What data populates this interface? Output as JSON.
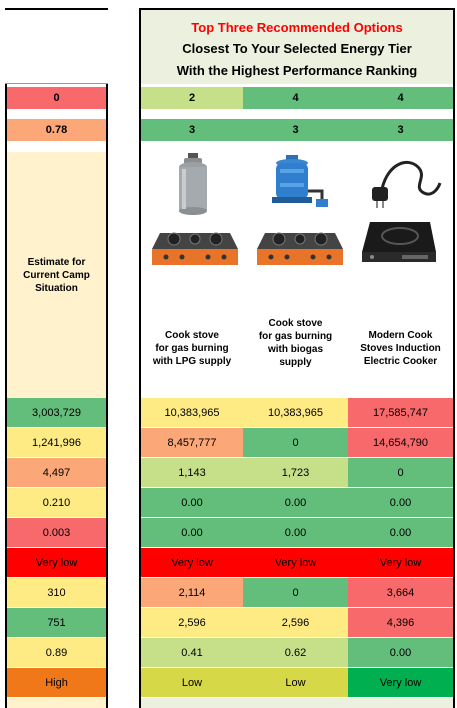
{
  "header": {
    "title": "Top Three Recommended Options",
    "line2": "Closest To Your Selected Energy Tier",
    "line3": "With the Highest Performance Ranking"
  },
  "left": {
    "tier_value": "0",
    "score_value": "0.78",
    "estimate_label": "Estimate for Current Camp Situation"
  },
  "options": {
    "tier_values": [
      "2",
      "4",
      "4"
    ],
    "rank_values": [
      "3",
      "3",
      "3"
    ],
    "names": [
      "Cook stove for gas burning with LPG supply",
      "Cook stove for gas burning with biogas supply",
      "Modern Cook Stoves Induction Electric Cooker"
    ],
    "name_lines": [
      [
        "Cook stove",
        "for gas burning",
        "with LPG supply"
      ],
      [
        "Cook stove",
        "for gas burning",
        "with biogas",
        "supply"
      ],
      [
        "Modern Cook",
        "Stoves Induction",
        "Electric Cooker"
      ]
    ]
  },
  "colors": {
    "red": "#f8696b",
    "green": "#63be7b",
    "light_green": "#c6e08a",
    "yellow": "#ffeb84",
    "orange": "#fca777",
    "bright_red": "#ff0000",
    "dark_orange": "#f07818",
    "olive": "#d7d848",
    "bright_green": "#00b050",
    "cream": "#fff2cc"
  },
  "rows": [
    {
      "left": "3,003,729",
      "vals": [
        "10,383,965",
        "10,383,965",
        "17,585,747"
      ]
    },
    {
      "left": "1,241,996",
      "vals": [
        "8,457,777",
        "0",
        "14,654,790"
      ]
    },
    {
      "left": "4,497",
      "vals": [
        "1,143",
        "1,723",
        "0"
      ]
    },
    {
      "left": "0.210",
      "vals": [
        "0.00",
        "0.00",
        "0.00"
      ]
    },
    {
      "left": "0.003",
      "vals": [
        "0.00",
        "0.00",
        "0.00"
      ]
    },
    {
      "left": "Very low",
      "vals": [
        "Very low",
        "Very low",
        "Very low"
      ]
    },
    {
      "left": "310",
      "vals": [
        "2,114",
        "0",
        "3,664"
      ]
    },
    {
      "left": "751",
      "vals": [
        "2,596",
        "2,596",
        "4,396"
      ]
    },
    {
      "left": "0.89",
      "vals": [
        "0.41",
        "0.62",
        "0.00"
      ]
    },
    {
      "left": "High",
      "vals": [
        "Low",
        "Low",
        "Very low"
      ]
    }
  ]
}
